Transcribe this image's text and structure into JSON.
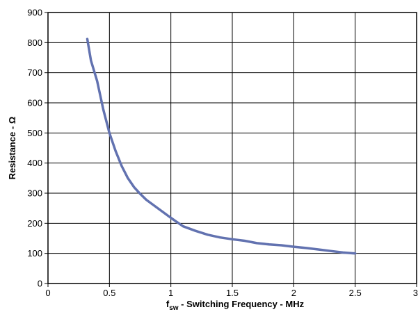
{
  "chart_data": {
    "type": "line",
    "title": "",
    "xlabel": {
      "prefix": "f",
      "subscript": "sw",
      "rest": " - Switching Frequency - MHz"
    },
    "ylabel": "Resistance - Ω",
    "xlim": [
      0,
      3
    ],
    "ylim": [
      0,
      900
    ],
    "xticks": [
      "0",
      "0.5",
      "1",
      "1.5",
      "2",
      "2.5",
      "3"
    ],
    "yticks": [
      "0",
      "100",
      "200",
      "300",
      "400",
      "500",
      "600",
      "700",
      "800",
      "900"
    ],
    "grid": true,
    "legend": "none",
    "colors": {
      "series": "#6272b0",
      "grid": "#000000"
    },
    "series": [
      {
        "x": [
          0.32,
          0.35,
          0.4,
          0.45,
          0.5,
          0.55,
          0.6,
          0.65,
          0.7,
          0.75,
          0.8,
          0.9,
          1.0,
          1.1,
          1.2,
          1.3,
          1.4,
          1.5,
          1.6,
          1.7,
          1.8,
          1.9,
          2.0,
          2.1,
          2.2,
          2.3,
          2.4,
          2.5
        ],
        "y": [
          812,
          740,
          672,
          578,
          500,
          440,
          390,
          350,
          320,
          298,
          278,
          248,
          218,
          190,
          175,
          162,
          153,
          147,
          142,
          134,
          130,
          127,
          122,
          118,
          113,
          108,
          103,
          100
        ]
      }
    ]
  }
}
